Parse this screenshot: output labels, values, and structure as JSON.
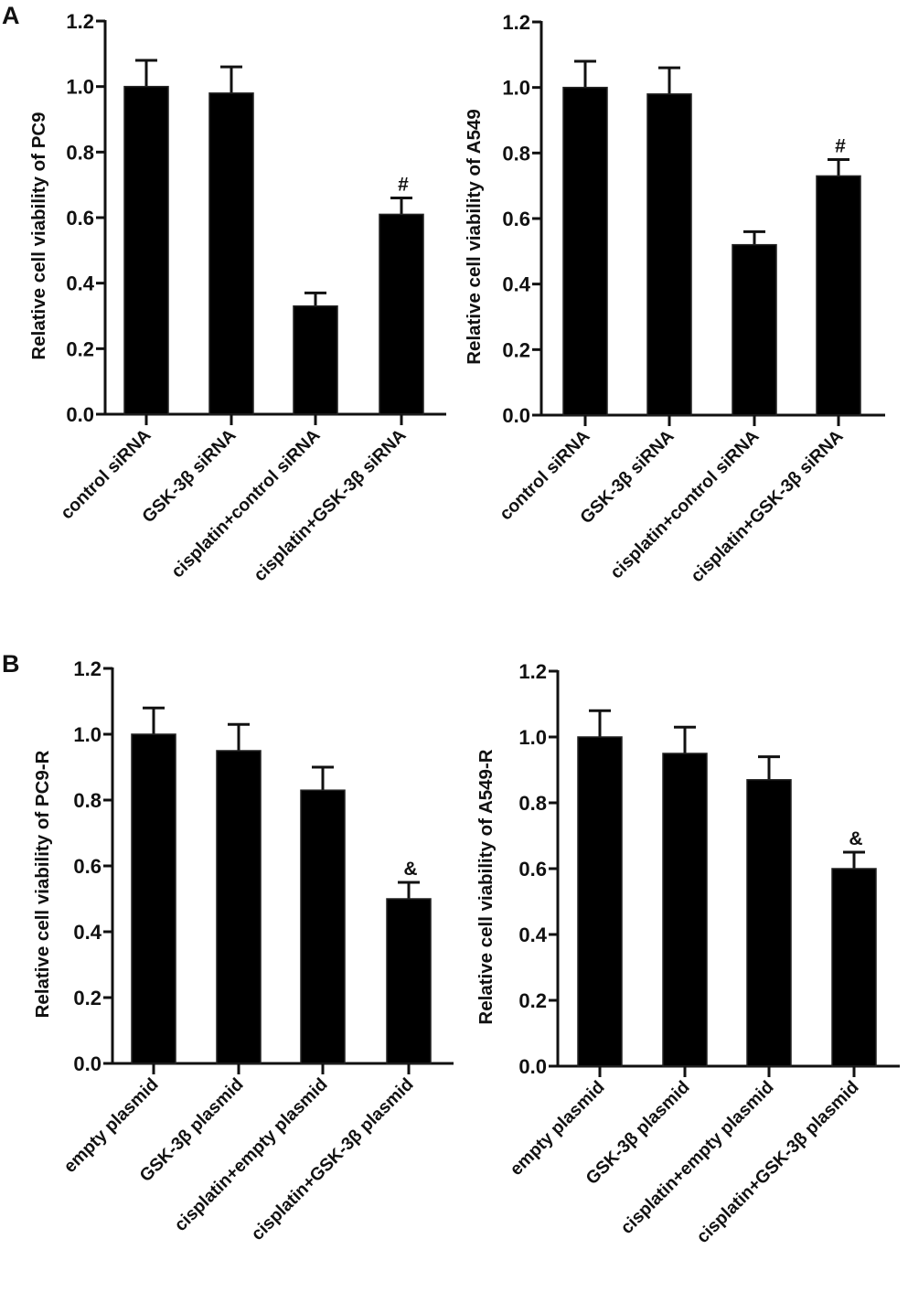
{
  "panels": [
    {
      "letter": "A"
    },
    {
      "letter": "B"
    }
  ],
  "chart_data": [
    {
      "type": "bar",
      "panel": "A",
      "title": "",
      "xlabel": "",
      "ylabel": "Relative cell viability of PC9",
      "ylim": [
        0,
        1.2
      ],
      "yticks": [
        "0.0",
        "0.2",
        "0.4",
        "0.6",
        "0.8",
        "1.0",
        "1.2"
      ],
      "categories": [
        "control siRNA",
        "GSK-3β siRNA",
        "cisplatin+control siRNA",
        "cisplatin+GSK-3β siRNA"
      ],
      "values": [
        1.0,
        0.98,
        0.33,
        0.61
      ],
      "error_upper": [
        1.08,
        1.06,
        0.37,
        0.66
      ],
      "annotations": [
        "",
        "",
        "",
        "#"
      ],
      "bar_color": "#000000",
      "grid": false
    },
    {
      "type": "bar",
      "panel": "A",
      "title": "",
      "xlabel": "",
      "ylabel": "Relative cell viability of A549",
      "ylim": [
        0,
        1.2
      ],
      "yticks": [
        "0.0",
        "0.2",
        "0.4",
        "0.6",
        "0.8",
        "1.0",
        "1.2"
      ],
      "categories": [
        "control siRNA",
        "GSK-3β siRNA",
        "cisplatin+control siRNA",
        "cisplatin+GSK-3β siRNA"
      ],
      "values": [
        1.0,
        0.98,
        0.52,
        0.73
      ],
      "error_upper": [
        1.08,
        1.06,
        0.56,
        0.78
      ],
      "annotations": [
        "",
        "",
        "",
        "#"
      ],
      "bar_color": "#000000",
      "grid": false
    },
    {
      "type": "bar",
      "panel": "B",
      "title": "",
      "xlabel": "",
      "ylabel": "Relative cell viability of PC9-R",
      "ylim": [
        0,
        1.2
      ],
      "yticks": [
        "0.0",
        "0.2",
        "0.4",
        "0.6",
        "0.8",
        "1.0",
        "1.2"
      ],
      "categories": [
        "empty plasmid",
        "GSK-3β plasmid",
        "cisplatin+empty plasmid",
        "cisplatin+GSK-3β plasmid"
      ],
      "values": [
        1.0,
        0.95,
        0.83,
        0.5
      ],
      "error_upper": [
        1.08,
        1.03,
        0.9,
        0.55
      ],
      "annotations": [
        "",
        "",
        "",
        "&"
      ],
      "bar_color": "#000000",
      "grid": false
    },
    {
      "type": "bar",
      "panel": "B",
      "title": "",
      "xlabel": "",
      "ylabel": "Relative cell viability of A549-R",
      "ylim": [
        0,
        1.2
      ],
      "yticks": [
        "0.0",
        "0.2",
        "0.4",
        "0.6",
        "0.8",
        "1.0",
        "1.2"
      ],
      "categories": [
        "empty plasmid",
        "GSK-3β plasmid",
        "cisplatin+empty plasmid",
        "cisplatin+GSK-3β plasmid"
      ],
      "values": [
        1.0,
        0.95,
        0.87,
        0.6
      ],
      "error_upper": [
        1.08,
        1.03,
        0.94,
        0.65
      ],
      "annotations": [
        "",
        "",
        "",
        "&"
      ],
      "bar_color": "#000000",
      "grid": false
    }
  ]
}
